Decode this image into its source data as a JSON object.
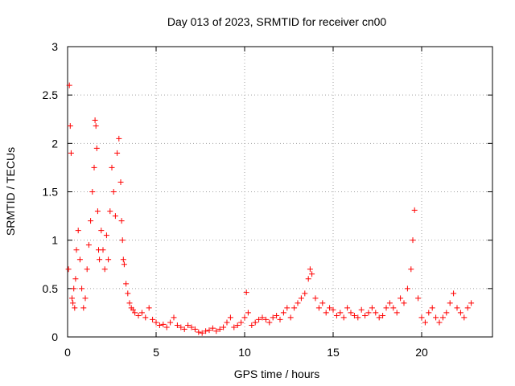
{
  "chart_data": {
    "type": "scatter",
    "title": "Day 013 of 2023, SRMTID for receiver cn00",
    "xlabel": "GPS time / hours",
    "ylabel": "SRMTID / TECUs",
    "xlim": [
      0,
      24
    ],
    "ylim": [
      0,
      3
    ],
    "x_ticks": [
      "0",
      "5",
      "10",
      "15",
      "20"
    ],
    "y_ticks": [
      "0",
      "0.5",
      "1",
      "1.5",
      "2",
      "2.5",
      "3"
    ],
    "grid": true,
    "marker": "+",
    "color": "#ff0000",
    "series": [
      {
        "name": "SRMTID",
        "x": [
          0.05,
          0.1,
          0.15,
          0.2,
          0.25,
          0.3,
          0.35,
          0.4,
          0.45,
          0.5,
          0.6,
          0.7,
          0.8,
          0.9,
          1.0,
          1.1,
          1.2,
          1.3,
          1.4,
          1.5,
          1.55,
          1.6,
          1.65,
          1.7,
          1.75,
          1.8,
          1.9,
          2.0,
          2.1,
          2.2,
          2.3,
          2.4,
          2.5,
          2.6,
          2.7,
          2.8,
          2.9,
          3.0,
          3.05,
          3.1,
          3.15,
          3.2,
          3.3,
          3.4,
          3.5,
          3.6,
          3.7,
          3.8,
          4.0,
          4.2,
          4.4,
          4.6,
          4.8,
          5.0,
          5.2,
          5.4,
          5.6,
          5.8,
          6.0,
          6.2,
          6.4,
          6.6,
          6.8,
          7.0,
          7.2,
          7.4,
          7.6,
          7.8,
          8.0,
          8.2,
          8.4,
          8.6,
          8.8,
          9.0,
          9.2,
          9.4,
          9.6,
          9.8,
          10.0,
          10.1,
          10.2,
          10.4,
          10.6,
          10.8,
          11.0,
          11.2,
          11.4,
          11.6,
          11.8,
          12.0,
          12.2,
          12.4,
          12.6,
          12.8,
          13.0,
          13.2,
          13.4,
          13.6,
          13.7,
          13.8,
          14.0,
          14.2,
          14.4,
          14.6,
          14.8,
          15.0,
          15.2,
          15.4,
          15.6,
          15.8,
          16.0,
          16.2,
          16.4,
          16.6,
          16.8,
          17.0,
          17.2,
          17.4,
          17.6,
          17.8,
          18.0,
          18.2,
          18.4,
          18.6,
          18.8,
          19.0,
          19.2,
          19.4,
          19.5,
          19.6,
          19.8,
          20.0,
          20.2,
          20.4,
          20.6,
          20.8,
          21.0,
          21.2,
          21.4,
          21.6,
          21.8,
          22.0,
          22.2,
          22.4,
          22.6,
          22.8
        ],
        "y": [
          0.7,
          2.6,
          2.18,
          1.9,
          0.4,
          0.35,
          0.5,
          0.3,
          0.6,
          0.9,
          1.1,
          0.8,
          0.5,
          0.3,
          0.4,
          0.7,
          0.95,
          1.2,
          1.5,
          1.75,
          2.24,
          2.18,
          1.95,
          1.3,
          0.9,
          0.8,
          1.1,
          0.9,
          0.7,
          1.05,
          0.8,
          1.3,
          1.75,
          1.5,
          1.25,
          1.9,
          2.05,
          1.6,
          1.2,
          1.0,
          0.8,
          0.75,
          0.55,
          0.45,
          0.35,
          0.3,
          0.28,
          0.25,
          0.22,
          0.25,
          0.2,
          0.3,
          0.18,
          0.15,
          0.12,
          0.13,
          0.1,
          0.15,
          0.2,
          0.12,
          0.1,
          0.08,
          0.12,
          0.1,
          0.08,
          0.05,
          0.04,
          0.06,
          0.07,
          0.09,
          0.06,
          0.08,
          0.1,
          0.15,
          0.2,
          0.1,
          0.12,
          0.15,
          0.2,
          0.46,
          0.25,
          0.12,
          0.15,
          0.18,
          0.2,
          0.18,
          0.15,
          0.2,
          0.22,
          0.18,
          0.25,
          0.3,
          0.2,
          0.3,
          0.35,
          0.4,
          0.45,
          0.6,
          0.7,
          0.65,
          0.4,
          0.3,
          0.35,
          0.25,
          0.3,
          0.28,
          0.22,
          0.25,
          0.2,
          0.3,
          0.25,
          0.22,
          0.2,
          0.28,
          0.22,
          0.25,
          0.3,
          0.25,
          0.2,
          0.22,
          0.3,
          0.35,
          0.3,
          0.25,
          0.4,
          0.35,
          0.5,
          0.7,
          1.0,
          1.31,
          0.4,
          0.2,
          0.15,
          0.25,
          0.3,
          0.2,
          0.15,
          0.2,
          0.25,
          0.35,
          0.45,
          0.3,
          0.25,
          0.2,
          0.3,
          0.35
        ]
      }
    ]
  }
}
